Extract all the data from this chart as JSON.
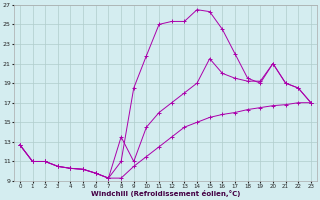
{
  "xlabel": "Windchill (Refroidissement éolien,°C)",
  "background_color": "#d4edf0",
  "grid_color": "#b0cccc",
  "line_color": "#aa00aa",
  "xlim": [
    -0.5,
    23.5
  ],
  "ylim": [
    9,
    27
  ],
  "xticks": [
    0,
    1,
    2,
    3,
    4,
    5,
    6,
    7,
    8,
    9,
    10,
    11,
    12,
    13,
    14,
    15,
    16,
    17,
    18,
    19,
    20,
    21,
    22,
    23
  ],
  "yticks": [
    9,
    11,
    13,
    15,
    17,
    19,
    21,
    23,
    25,
    27
  ],
  "curve1_x": [
    0,
    1,
    2,
    3,
    4,
    5,
    6,
    7,
    8,
    9,
    10,
    11,
    12,
    13,
    14,
    15,
    16,
    17,
    18,
    19,
    20,
    21,
    22,
    23
  ],
  "curve1_y": [
    12.7,
    11.0,
    11.0,
    10.5,
    10.3,
    10.2,
    9.8,
    9.3,
    11.0,
    18.5,
    21.8,
    25.0,
    25.3,
    25.3,
    26.5,
    26.3,
    24.5,
    22.0,
    19.5,
    19.0,
    21.0,
    19.0,
    18.5,
    17.0
  ],
  "curve2_x": [
    0,
    1,
    2,
    3,
    4,
    5,
    6,
    7,
    8,
    9,
    10,
    11,
    12,
    13,
    14,
    15,
    16,
    17,
    18,
    19,
    20,
    21,
    22,
    23
  ],
  "curve2_y": [
    12.7,
    11.0,
    11.0,
    10.5,
    10.3,
    10.2,
    9.8,
    9.3,
    13.5,
    11.0,
    14.5,
    16.0,
    17.0,
    18.0,
    19.0,
    21.5,
    20.0,
    19.5,
    19.2,
    19.2,
    21.0,
    19.0,
    18.5,
    17.0
  ],
  "curve3_x": [
    0,
    1,
    2,
    3,
    4,
    5,
    6,
    7,
    8,
    9,
    10,
    11,
    12,
    13,
    14,
    15,
    16,
    17,
    18,
    19,
    20,
    21,
    22,
    23
  ],
  "curve3_y": [
    12.7,
    11.0,
    11.0,
    10.5,
    10.3,
    10.2,
    9.8,
    9.3,
    9.3,
    10.5,
    11.5,
    12.5,
    13.5,
    14.5,
    15.0,
    15.5,
    15.8,
    16.0,
    16.3,
    16.5,
    16.7,
    16.8,
    17.0,
    17.0
  ]
}
